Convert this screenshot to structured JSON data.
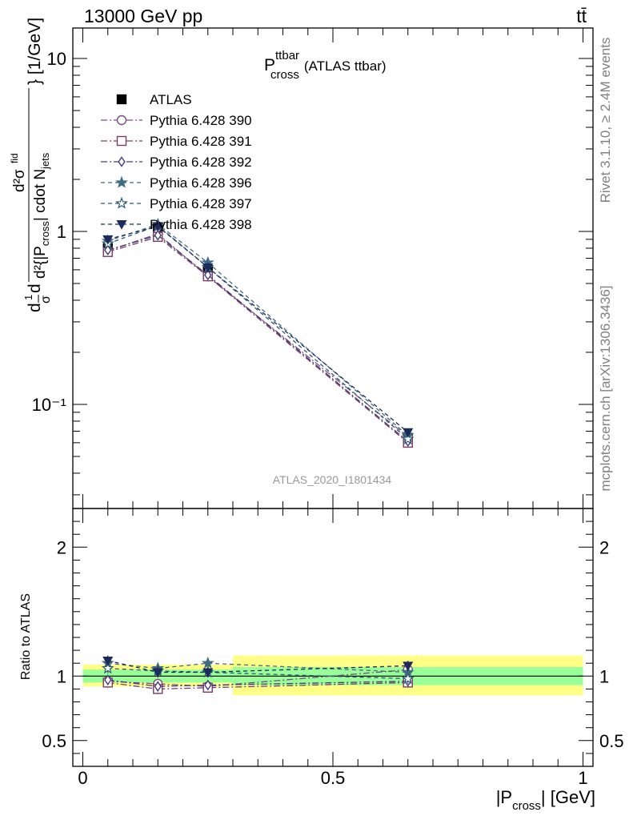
{
  "header": {
    "left_label": "13000 GeV pp",
    "right_label": "tt̄"
  },
  "side_labels": {
    "rivet": "Rivet 3.1.10, ≥ 2.4M events",
    "mcplots": "mcplots.cern.ch [arXiv:1306.3436]"
  },
  "watermark": "ATLAS_2020_I1801434",
  "chart_data": [
    {
      "type": "line",
      "panel": "main",
      "title_main": "P",
      "title_sup": "ttbar",
      "title_sub": "cross",
      "title_suffix": "(ATLAS ttbar)",
      "ylabel": "d¹/σ d²σⁱⁿᵈ / d²{|P_cross| cdot N_jets} [1/GeV]",
      "ylabel_parts": {
        "frac1_num": "d",
        "frac1_den": "σ",
        "frac1_sup": "1",
        "frac1_tail": "d",
        "frac2_num": "d²σ",
        "frac2_num_sup": "fid",
        "frac2_den": "d²{|P",
        "frac2_den_sub": "cross",
        "frac2_den_tail": "| cdot N",
        "frac2_den_sub2": "jets",
        "unit": "} [1/GeV]"
      },
      "yscale": "log",
      "ylim": [
        0.025,
        15
      ],
      "xlim": [
        -0.02,
        1.02
      ],
      "y_ticks": [
        {
          "value": 10,
          "label": "10"
        },
        {
          "value": 1,
          "label": "1"
        },
        {
          "value": 0.1,
          "label": "10⁻¹"
        }
      ],
      "legend_position": "top-left",
      "x": [
        0.05,
        0.15,
        0.25,
        0.65
      ],
      "series": [
        {
          "name": "ATLAS",
          "values": [
            0.8,
            1.03,
            0.6,
            0.064
          ],
          "errors": [
            0.03,
            0.04,
            0.03,
            0.004
          ],
          "color": "#000000",
          "marker": "square-filled",
          "dash": "none"
        },
        {
          "name": "Pythia 6.428 390",
          "values": [
            0.77,
            0.97,
            0.55,
            0.065
          ],
          "color": "#7a4d7e",
          "marker": "circle-open",
          "dash": "8,3,2,3"
        },
        {
          "name": "Pythia 6.428 391",
          "values": [
            0.76,
            0.93,
            0.55,
            0.06
          ],
          "color": "#7a3c63",
          "marker": "square-open",
          "dash": "8,3,2,3"
        },
        {
          "name": "Pythia 6.428 392",
          "values": [
            0.78,
            0.95,
            0.56,
            0.061
          ],
          "color": "#483a79",
          "marker": "diamond-open",
          "dash": "8,3,2,3"
        },
        {
          "name": "Pythia 6.428 396",
          "values": [
            0.88,
            1.1,
            0.66,
            0.066
          ],
          "color": "#3f6d80",
          "marker": "star-filled",
          "dash": "5,4"
        },
        {
          "name": "Pythia 6.428 397",
          "values": [
            0.85,
            1.08,
            0.62,
            0.063
          ],
          "color": "#2d5873",
          "marker": "star-open",
          "dash": "5,4"
        },
        {
          "name": "Pythia 6.428 398",
          "values": [
            0.9,
            1.07,
            0.62,
            0.069
          ],
          "color": "#1d2b5c",
          "marker": "triangle-down-filled",
          "dash": "5,4"
        }
      ]
    },
    {
      "type": "line",
      "panel": "ratio",
      "ylabel": "Ratio to ATLAS",
      "xlabel_main": "|P",
      "xlabel_sub": "cross",
      "xlabel_tail": "| [GeV]",
      "yscale": "linear",
      "ylim": [
        0.3,
        2.3
      ],
      "xlim": [
        -0.02,
        1.02
      ],
      "y_ticks": [
        {
          "value": 2,
          "label": "2"
        },
        {
          "value": 1,
          "label": "1"
        },
        {
          "value": 0.5,
          "label": "0.5"
        }
      ],
      "x_ticks": [
        {
          "value": 0,
          "label": "0"
        },
        {
          "value": 0.5,
          "label": "0.5"
        },
        {
          "value": 1,
          "label": "1"
        }
      ],
      "bands": [
        {
          "x_range": [
            0.0,
            0.3
          ],
          "stat": [
            0.95,
            1.05
          ],
          "total": [
            0.92,
            1.09
          ]
        },
        {
          "x_range": [
            0.3,
            1.0
          ],
          "stat": [
            0.93,
            1.07
          ],
          "total": [
            0.85,
            1.16
          ]
        }
      ],
      "x": [
        0.05,
        0.15,
        0.25,
        0.65
      ],
      "series": [
        {
          "name": "Pythia 6.428 390",
          "values": [
            0.96,
            0.94,
            0.92,
            1.05
          ],
          "color": "#7a4d7e",
          "marker": "circle-open",
          "dash": "8,3,2,3"
        },
        {
          "name": "Pythia 6.428 391",
          "values": [
            0.95,
            0.9,
            0.91,
            0.95
          ],
          "color": "#7a3c63",
          "marker": "square-open",
          "dash": "8,3,2,3"
        },
        {
          "name": "Pythia 6.428 392",
          "values": [
            0.97,
            0.92,
            0.93,
            0.96
          ],
          "color": "#483a79",
          "marker": "diamond-open",
          "dash": "8,3,2,3"
        },
        {
          "name": "Pythia 6.428 396",
          "values": [
            1.1,
            1.06,
            1.1,
            1.03
          ],
          "color": "#3f6d80",
          "marker": "star-filled",
          "dash": "5,4"
        },
        {
          "name": "Pythia 6.428 397",
          "values": [
            1.06,
            1.04,
            1.03,
            0.98
          ],
          "color": "#2d5873",
          "marker": "star-open",
          "dash": "5,4"
        },
        {
          "name": "Pythia 6.428 398",
          "values": [
            1.12,
            1.03,
            1.03,
            1.08
          ],
          "color": "#1d2b5c",
          "marker": "triangle-down-filled",
          "dash": "5,4"
        }
      ]
    }
  ]
}
